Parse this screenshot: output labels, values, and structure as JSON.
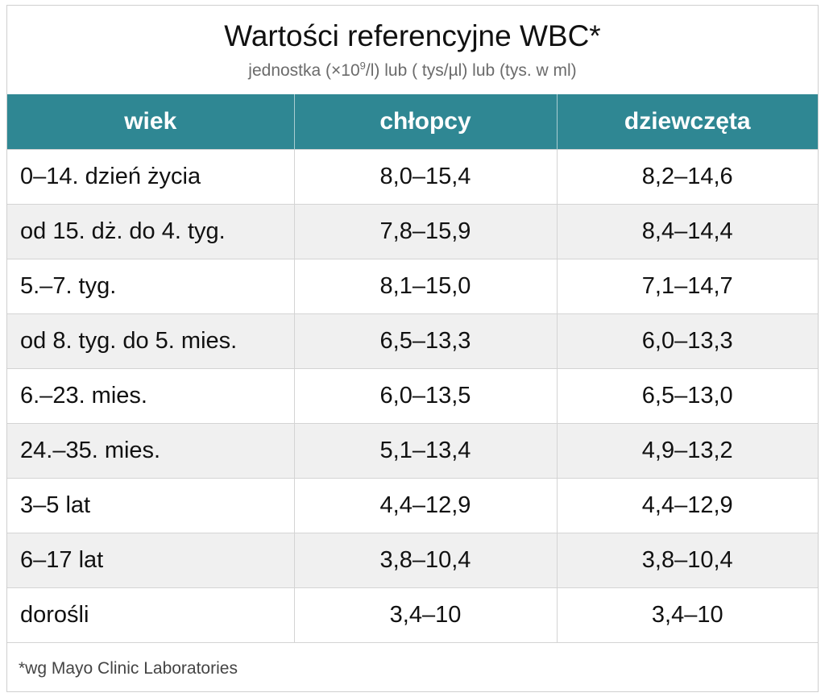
{
  "header": {
    "title": "Wartości referencyjne WBC*",
    "subtitle_prefix": "jednostka (×10",
    "subtitle_sup": "9",
    "subtitle_suffix": "/l)  lub ( tys/µl)  lub  (tys. w ml)"
  },
  "table": {
    "columns": [
      "wiek",
      "chłopcy",
      "dziewczęta"
    ],
    "rows": [
      {
        "age": "0–14. dzień życia",
        "boys": "8,0–15,4",
        "girls": "8,2–14,6"
      },
      {
        "age": "od 15. dż. do 4. tyg.",
        "boys": "7,8–15,9",
        "girls": "8,4–14,4"
      },
      {
        "age": "5.–7. tyg.",
        "boys": "8,1–15,0",
        "girls": "7,1–14,7"
      },
      {
        "age": "od 8. tyg. do 5. mies.",
        "boys": "6,5–13,3",
        "girls": "6,0–13,3"
      },
      {
        "age": "6.–23. mies.",
        "boys": "6,0–13,5",
        "girls": "6,5–13,0"
      },
      {
        "age": "24.–35. mies.",
        "boys": "5,1–13,4",
        "girls": "4,9–13,2"
      },
      {
        "age": "3–5 lat",
        "boys": "4,4–12,9",
        "girls": "4,4–12,9"
      },
      {
        "age": "6–17 lat",
        "boys": "3,8–10,4",
        "girls": "3,8–10,4"
      },
      {
        "age": "dorośli",
        "boys": "3,4–10",
        "girls": "3,4–10"
      }
    ]
  },
  "footnote": "*wg Mayo Clinic Laboratories",
  "colors": {
    "header_bg": "#2f8793",
    "stripe_bg": "#f0f0f0"
  }
}
